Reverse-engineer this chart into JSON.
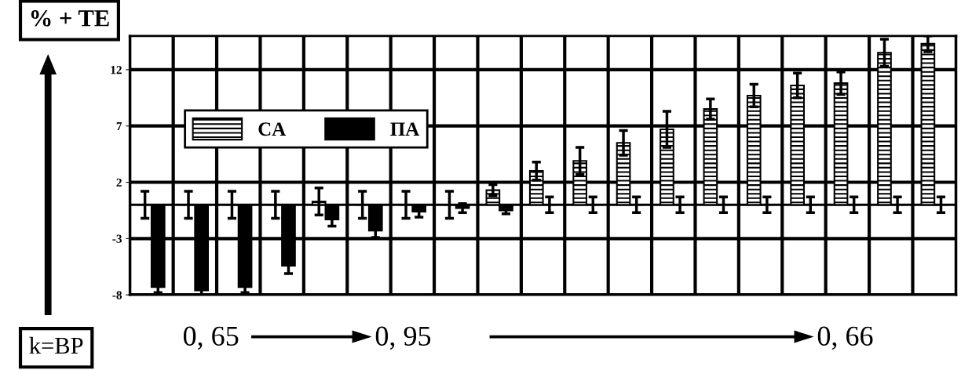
{
  "chart_data": {
    "type": "bar",
    "xlabel": "k=BP",
    "ylabel": "% + TE",
    "categories": [
      null,
      null,
      null,
      null,
      null,
      null,
      null,
      null,
      null,
      null,
      null,
      null,
      null,
      null,
      null,
      null,
      null,
      null,
      null
    ],
    "series": [
      {
        "name": "CA",
        "color": "#000000",
        "values": [
          0,
          0,
          0,
          0,
          0.3,
          0,
          0,
          0,
          1.3,
          3.0,
          3.9,
          5.5,
          6.7,
          8.5,
          9.7,
          10.6,
          10.8,
          13.5,
          14.3
        ],
        "errors": [
          1.2,
          1.2,
          1.2,
          1.2,
          1.2,
          1.2,
          1.2,
          1.2,
          0.5,
          0.8,
          1.2,
          1.1,
          1.6,
          0.9,
          1.0,
          1.1,
          1.0,
          1.2,
          0.7
        ]
      },
      {
        "name": "ПА",
        "color": "#000000",
        "values": [
          -7.3,
          -7.6,
          -7.3,
          -5.4,
          -1.3,
          -2.3,
          -0.6,
          -0.3,
          -0.5,
          0,
          0,
          0,
          0,
          0,
          0,
          0,
          0,
          0,
          0
        ],
        "errors": [
          0.5,
          0.4,
          0.5,
          0.7,
          0.6,
          0.6,
          0.5,
          0.4,
          0.3,
          0.7,
          0.7,
          0.7,
          0.7,
          0.7,
          0.7,
          0.7,
          0.7,
          0.7,
          0.7
        ]
      }
    ],
    "ylim": [
      -8,
      15
    ],
    "yticks": [
      -8,
      -3,
      2,
      7,
      12
    ],
    "grid": true,
    "legend": "top left",
    "annotations": [
      "0, 65",
      "0, 95",
      "0, 66"
    ]
  }
}
